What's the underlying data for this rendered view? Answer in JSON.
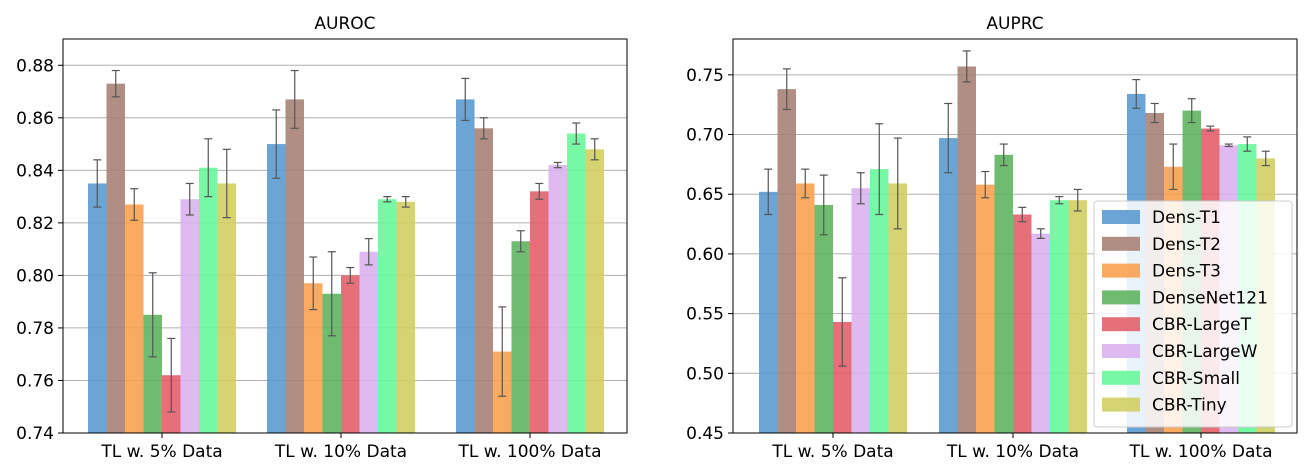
{
  "chart_data": [
    {
      "type": "bar",
      "title": "AUROC",
      "xlabel": "",
      "ylabel": "",
      "categories": [
        "TL w. 5% Data",
        "TL w. 10% Data",
        "TL w. 100% Data"
      ],
      "ylim": [
        0.74,
        0.89
      ],
      "yticks": [
        "0.74",
        "0.76",
        "0.78",
        "0.80",
        "0.82",
        "0.84",
        "0.86",
        "0.88"
      ],
      "grid": "horizontal",
      "legend": "none",
      "series": [
        {
          "name": "Dens-T1",
          "color": "#5b9bd0",
          "values": [
            0.835,
            0.85,
            0.867
          ],
          "errors": [
            0.009,
            0.013,
            0.008
          ]
        },
        {
          "name": "Dens-T2",
          "color": "#a98276",
          "values": [
            0.873,
            0.867,
            0.856
          ],
          "errors": [
            0.005,
            0.011,
            0.004
          ]
        },
        {
          "name": "Dens-T3",
          "color": "#fba150",
          "values": [
            0.827,
            0.797,
            0.771
          ],
          "errors": [
            0.006,
            0.01,
            0.017
          ]
        },
        {
          "name": "DenseNet121",
          "color": "#5fb560",
          "values": [
            0.785,
            0.793,
            0.813
          ],
          "errors": [
            0.016,
            0.016,
            0.004
          ]
        },
        {
          "name": "CBR-LargeT",
          "color": "#e2616b",
          "values": [
            0.762,
            0.8,
            0.832
          ],
          "errors": [
            0.014,
            0.003,
            0.003
          ]
        },
        {
          "name": "CBR-LargeW",
          "color": "#dbb2f0",
          "values": [
            0.829,
            0.809,
            0.842
          ],
          "errors": [
            0.006,
            0.005,
            0.001
          ]
        },
        {
          "name": "CBR-Small",
          "color": "#68f79b",
          "values": [
            0.841,
            0.829,
            0.854
          ],
          "errors": [
            0.011,
            0.001,
            0.004
          ]
        },
        {
          "name": "CBR-Tiny",
          "color": "#d1cf63",
          "values": [
            0.835,
            0.828,
            0.848
          ],
          "errors": [
            0.013,
            0.002,
            0.004
          ]
        }
      ]
    },
    {
      "type": "bar",
      "title": "AUPRC",
      "xlabel": "",
      "ylabel": "",
      "categories": [
        "TL w. 5% Data",
        "TL w. 10% Data",
        "TL w. 100% Data"
      ],
      "ylim": [
        0.45,
        0.78
      ],
      "yticks": [
        "0.45",
        "0.50",
        "0.55",
        "0.60",
        "0.65",
        "0.70",
        "0.75"
      ],
      "grid": "horizontal",
      "legend": "lower-right",
      "series": [
        {
          "name": "Dens-T1",
          "color": "#5b9bd0",
          "values": [
            0.652,
            0.697,
            0.734
          ],
          "errors": [
            0.019,
            0.029,
            0.012
          ]
        },
        {
          "name": "Dens-T2",
          "color": "#a98276",
          "values": [
            0.738,
            0.757,
            0.718
          ],
          "errors": [
            0.017,
            0.013,
            0.008
          ]
        },
        {
          "name": "Dens-T3",
          "color": "#fba150",
          "values": [
            0.659,
            0.658,
            0.673
          ],
          "errors": [
            0.012,
            0.011,
            0.019
          ]
        },
        {
          "name": "DenseNet121",
          "color": "#5fb560",
          "values": [
            0.641,
            0.683,
            0.72
          ],
          "errors": [
            0.025,
            0.009,
            0.01
          ]
        },
        {
          "name": "CBR-LargeT",
          "color": "#e2616b",
          "values": [
            0.543,
            0.633,
            0.705
          ],
          "errors": [
            0.037,
            0.006,
            0.002
          ]
        },
        {
          "name": "CBR-LargeW",
          "color": "#dbb2f0",
          "values": [
            0.655,
            0.617,
            0.691
          ],
          "errors": [
            0.013,
            0.004,
            0.001
          ]
        },
        {
          "name": "CBR-Small",
          "color": "#68f79b",
          "values": [
            0.671,
            0.645,
            0.692
          ],
          "errors": [
            0.038,
            0.003,
            0.006
          ]
        },
        {
          "name": "CBR-Tiny",
          "color": "#d1cf63",
          "values": [
            0.659,
            0.645,
            0.68
          ],
          "errors": [
            0.038,
            0.009,
            0.006
          ]
        }
      ]
    }
  ]
}
